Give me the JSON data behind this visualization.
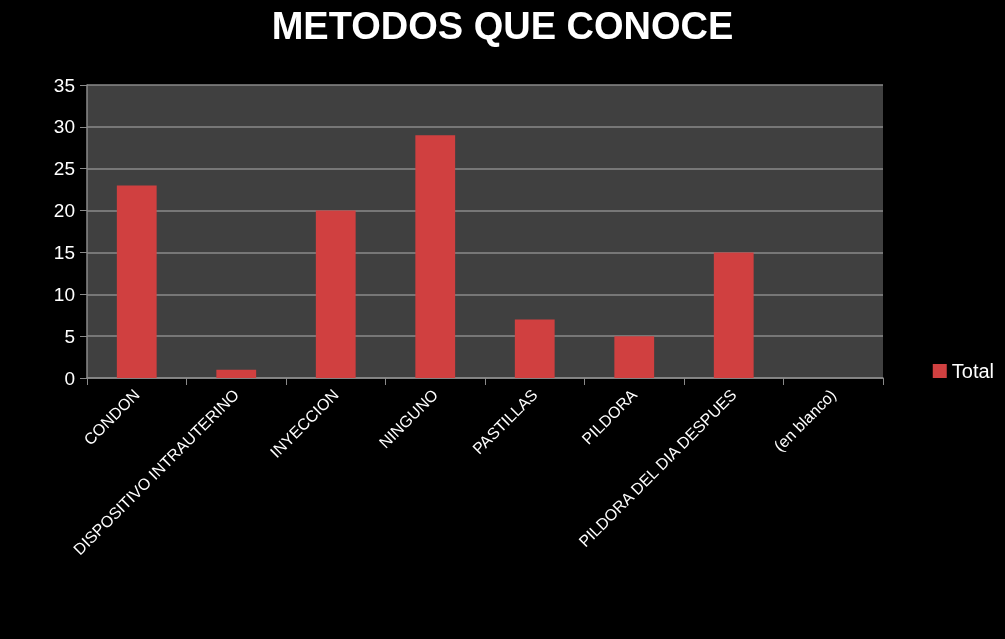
{
  "chart_data": {
    "type": "bar",
    "title": "METODOS QUE CONOCE",
    "categories": [
      "CONDON",
      "DISPOSITIVO INTRAUTERINO",
      "INYECCION",
      "NINGUNO",
      "PASTILLAS",
      "PILDORA",
      "PILDORA DEL DIA DESPUES",
      "(en blanco)"
    ],
    "series": [
      {
        "name": "Total",
        "color": "#d04040",
        "values": [
          23,
          1,
          20,
          29,
          7,
          5,
          15,
          null
        ]
      }
    ],
    "ylim": [
      0,
      35
    ],
    "yticks": [
      0,
      5,
      10,
      15,
      20,
      25,
      30,
      35
    ],
    "grid": "y",
    "legend": "right"
  }
}
